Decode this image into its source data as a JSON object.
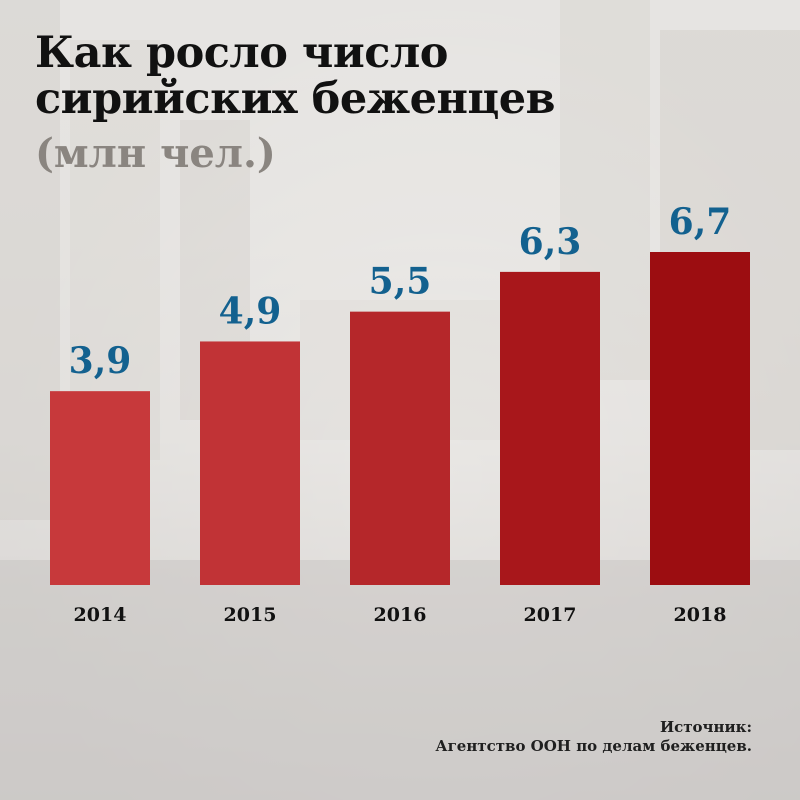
{
  "header": {
    "title_line1": "Как росло число",
    "title_line2": "сирийских беженцев",
    "subtitle": "(млн чел.)"
  },
  "footer": {
    "source_label": "Источник:",
    "source_text": "Агентство ООН по делам беженцев."
  },
  "colors": {
    "bars": [
      "#c7393b",
      "#c13336",
      "#b5272a",
      "#a8171b",
      "#9c0d11"
    ],
    "value_label": "#13618f",
    "axis_label": "#111111"
  },
  "chart_data": {
    "type": "bar",
    "title": "Как росло число сирийских беженцев",
    "subtitle": "(млн чел.)",
    "categories": [
      "2014",
      "2015",
      "2016",
      "2017",
      "2018"
    ],
    "values": [
      3.9,
      4.9,
      5.5,
      6.3,
      6.7
    ],
    "value_labels": [
      "3,9",
      "4,9",
      "5,5",
      "6,3",
      "6,7"
    ],
    "ylim": [
      0,
      6.7
    ],
    "grid": false
  }
}
